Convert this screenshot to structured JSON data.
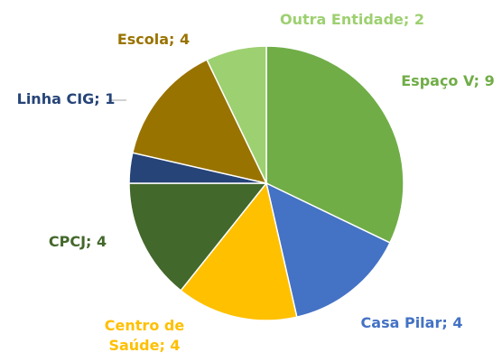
{
  "chart_data": {
    "type": "pie",
    "values": [
      9,
      4,
      4,
      4,
      1,
      4,
      2
    ],
    "value_labels": [
      "Espaço V; 9",
      "Casa Pilar; 4",
      "Centro de Saúde; 4",
      "CPCJ; 4",
      "Linha CIG; 1",
      "Escola; 4",
      "Outra Entidade; 2"
    ],
    "colors": [
      "#70ad47",
      "#4472c4",
      "#ffc000",
      "#43682b",
      "#264478",
      "#997300",
      "#9dd070"
    ]
  }
}
